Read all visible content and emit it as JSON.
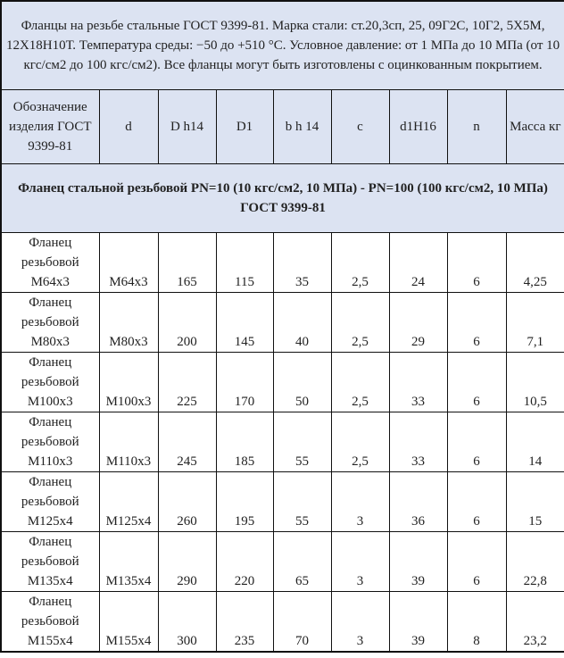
{
  "caption": "Фланцы на резьбе стальные ГОСТ 9399-81. Марка стали: ст.20,3сп, 25, 09Г2С, 10Г2, 5Х5М, 12Х18Н10Т. Температура среды:  −50 до +510 °С. Условное давление: от 1 МПа до 10 МПа (от 10 кгс/см2 до 100 кгс/см2). Все фланцы могут быть изготовлены с оцинкованным покрытием.",
  "columns": [
    "Обозначение изделия ГОСТ 9399-81",
    "d",
    "D h14",
    "D1",
    "b h 14",
    "c",
    "d1H16",
    "n",
    "Масса кг"
  ],
  "section": "Фланец стальной резьбовой PN=10 (10 кгс/см2, 10 МПа) - PN=100 (100 кгс/см2, 10 МПа) ГОСТ 9399-81",
  "colors": {
    "header_bg": "#dce3f2",
    "border": "#111111"
  },
  "rows": [
    [
      "Фланец резьбовой М64х3",
      "М64х3",
      "165",
      "115",
      "35",
      "2,5",
      "24",
      "6",
      "4,25"
    ],
    [
      "Фланец резьбовой М80х3",
      "М80х3",
      "200",
      "145",
      "40",
      "2,5",
      "29",
      "6",
      "7,1"
    ],
    [
      "Фланец резьбовой М100х3",
      "М100х3",
      "225",
      "170",
      "50",
      "2,5",
      "33",
      "6",
      "10,5"
    ],
    [
      "Фланец резьбовой М110х3",
      "М110х3",
      "245",
      "185",
      "55",
      "2,5",
      "33",
      "6",
      "14"
    ],
    [
      "Фланец резьбовой М125х4",
      "М125х4",
      "260",
      "195",
      "55",
      "3",
      "36",
      "6",
      "15"
    ],
    [
      "Фланец резьбовой М135х4",
      "М135х4",
      "290",
      "220",
      "65",
      "3",
      "39",
      "6",
      "22,8"
    ],
    [
      "Фланец резьбовой М155х4",
      "М155х4",
      "300",
      "235",
      "70",
      "3",
      "39",
      "8",
      "23,2"
    ]
  ]
}
